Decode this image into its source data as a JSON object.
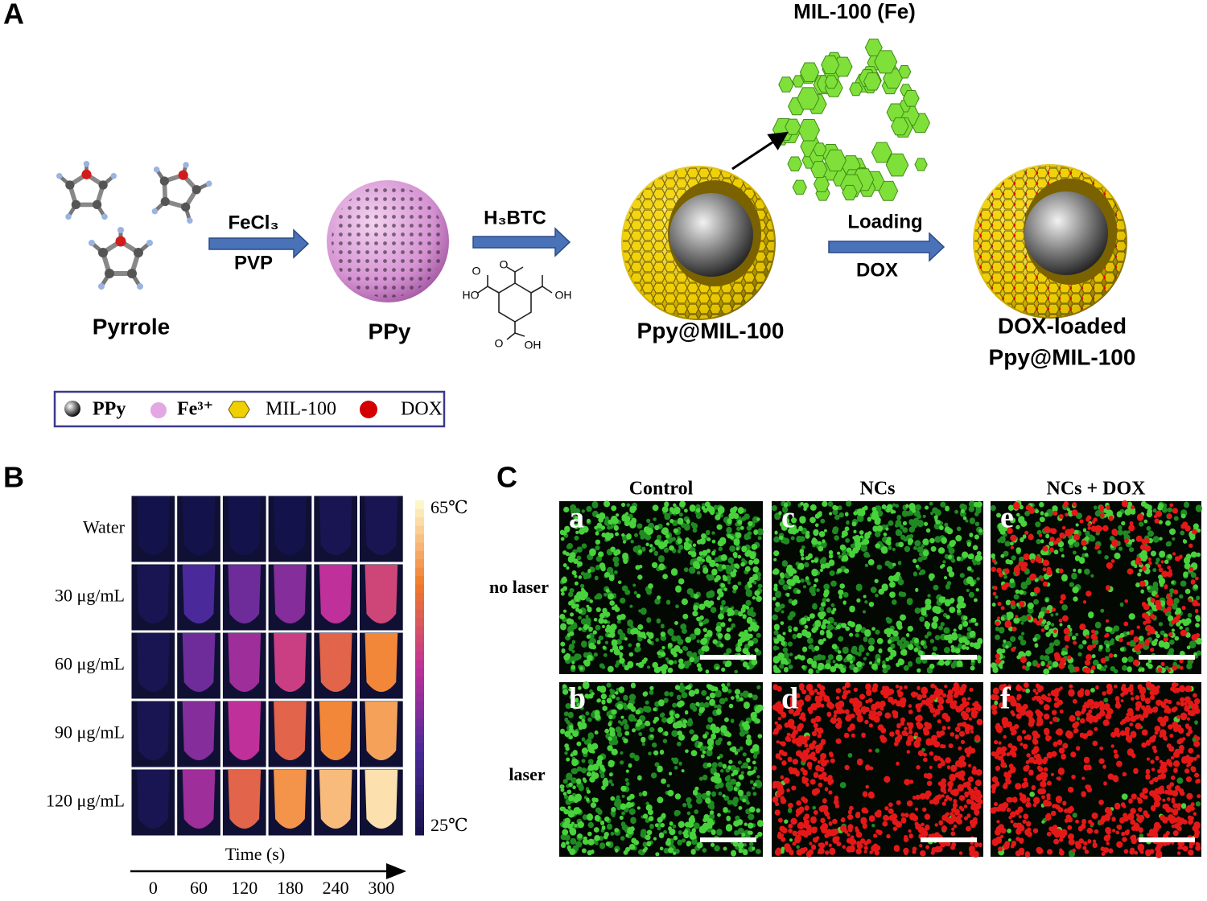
{
  "panel_a": {
    "label": "A",
    "mil100_title": "MIL-100 (Fe)",
    "pyrrole": "Pyrrole",
    "ppy": "PPy",
    "ppy_mil": "Ppy@MIL-100",
    "dox_loaded": [
      "DOX-loaded",
      "Ppy@MIL-100"
    ],
    "arrows": [
      {
        "above": "FeCl₃",
        "below": "PVP"
      },
      {
        "above": "H₃BTC"
      },
      {
        "above": "Loading",
        "below": "DOX"
      }
    ],
    "btc_atoms": [
      "O",
      "HO",
      "O",
      "OH",
      "O",
      "OH"
    ],
    "legend": [
      "PPy",
      "Fe³⁺",
      "MIL-100",
      "DOX"
    ]
  },
  "panel_b": {
    "label": "B",
    "rows": [
      "Water",
      "30 μg/mL",
      "60 μg/mL",
      "90 μg/mL",
      "120 μg/mL"
    ],
    "temperatures": [
      [
        25,
        25,
        25,
        25,
        26,
        26
      ],
      [
        26,
        35,
        38,
        40,
        45,
        48
      ],
      [
        26,
        38,
        42,
        47,
        52,
        56
      ],
      [
        26,
        40,
        45,
        52,
        56,
        58
      ],
      [
        26,
        42,
        52,
        57,
        60,
        63
      ]
    ],
    "colorbar": [
      {
        "value": 65,
        "label": "65℃"
      },
      {
        "value": 25,
        "label": "25℃"
      }
    ],
    "x_title": "Time (s)",
    "times": [
      0,
      60,
      120,
      180,
      240,
      300
    ]
  },
  "panel_c": {
    "label": "C",
    "columns": [
      "Control",
      "NCs",
      "NCs + DOX"
    ],
    "rows": [
      "no laser",
      "laser"
    ],
    "panels": [
      "a",
      "b",
      "c",
      "d",
      "e",
      "f"
    ]
  }
}
